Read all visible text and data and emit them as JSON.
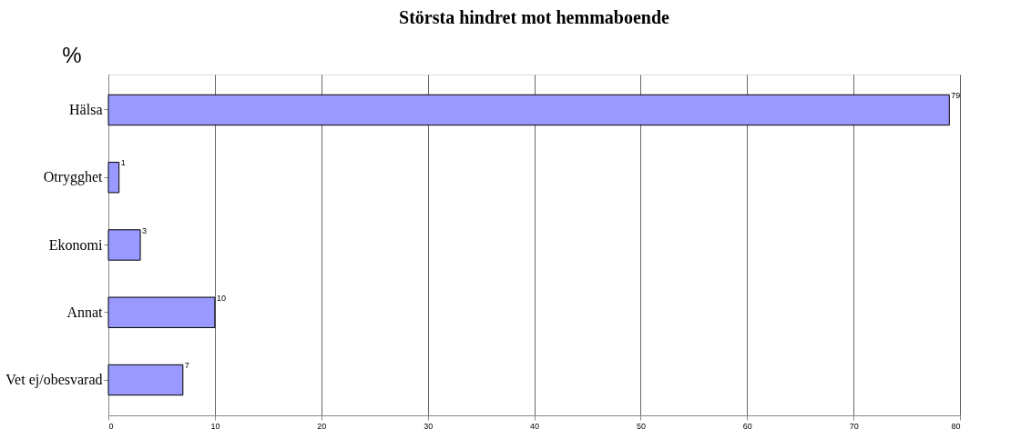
{
  "chart_data": {
    "type": "bar",
    "orientation": "horizontal",
    "title": "Största hindret mot hemmaboende",
    "xlabel": "%",
    "categories": [
      "Hälsa",
      "Otrygghet",
      "Ekonomi",
      "Annat",
      "Vet ej/obesvarad"
    ],
    "values": [
      79,
      1,
      3,
      10,
      7
    ],
    "color": "#9999ff",
    "xlim": [
      0,
      80
    ],
    "xticks": [
      0,
      10,
      20,
      30,
      40,
      50,
      60,
      70,
      80
    ],
    "grid": "x",
    "data_labels": true
  }
}
